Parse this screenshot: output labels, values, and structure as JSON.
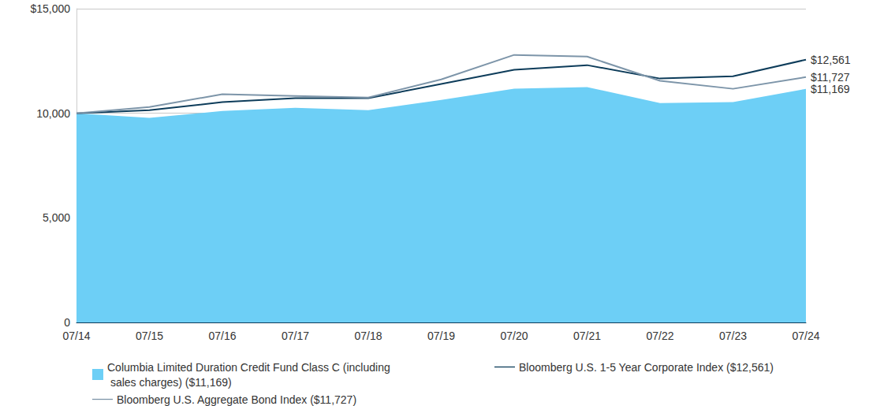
{
  "chart_data": {
    "type": "line",
    "categories": [
      "07/14",
      "07/15",
      "07/16",
      "07/17",
      "07/18",
      "07/19",
      "07/20",
      "07/21",
      "07/22",
      "07/23",
      "07/24"
    ],
    "series": [
      {
        "name": "Columbia Limited Duration Credit Fund Class C (including sales charges) ($11,169)",
        "type": "area",
        "color": "#6dcff6",
        "values": [
          10000,
          9780,
          10110,
          10260,
          10150,
          10640,
          11170,
          11250,
          10490,
          10530,
          11169
        ],
        "value_labels": [
          null,
          null,
          null,
          null,
          null,
          null,
          null,
          null,
          null,
          null,
          "$11,169"
        ]
      },
      {
        "name": "Bloomberg U.S. 1-5 Year Corporate Index ($12,561)",
        "type": "line",
        "color": "#0d3c5a",
        "values": [
          10000,
          10150,
          10530,
          10720,
          10720,
          11400,
          12080,
          12300,
          11660,
          11770,
          12561
        ],
        "value_labels": [
          null,
          null,
          null,
          null,
          null,
          null,
          null,
          null,
          null,
          null,
          "$12,561"
        ]
      },
      {
        "name": "Bloomberg U.S. Aggregate Bond Index ($11,727)",
        "type": "line",
        "color": "#7d95a9",
        "values": [
          10000,
          10300,
          10910,
          10830,
          10750,
          11620,
          12790,
          12710,
          11550,
          11170,
          11727
        ],
        "value_labels": [
          null,
          null,
          null,
          null,
          null,
          null,
          null,
          null,
          null,
          null,
          "$11,727"
        ]
      }
    ],
    "ylim": [
      0,
      15000
    ],
    "yticks": [
      0,
      {
        "value": 5000,
        "label": "5,000"
      },
      {
        "value": 10000,
        "label": "10,000"
      },
      {
        "value": 15000,
        "label": "$15,000"
      }
    ],
    "grid": true,
    "legend": "bottom"
  }
}
